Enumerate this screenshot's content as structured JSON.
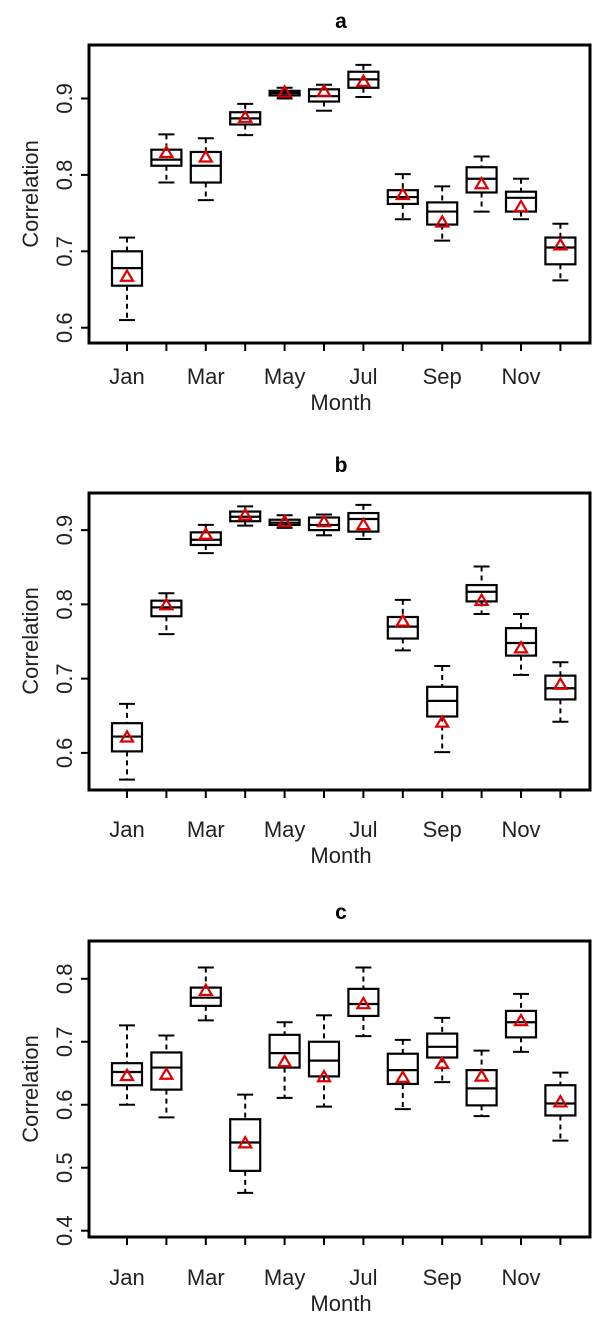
{
  "chart_data": [
    {
      "type": "boxplot",
      "title": "a",
      "xlabel": "Month",
      "ylabel": "Correlation",
      "ylim": [
        0.58,
        0.97
      ],
      "yticks": [
        0.6,
        0.7,
        0.8,
        0.9
      ],
      "ytick_labels": [
        "0.6",
        "0.7",
        "0.8",
        "0.9"
      ],
      "months": [
        "Jan",
        "Feb",
        "Mar",
        "Apr",
        "May",
        "Jun",
        "Jul",
        "Aug",
        "Sep",
        "Oct",
        "Nov",
        "Dec"
      ],
      "xtick_labels": [
        "Jan",
        "Mar",
        "May",
        "Jul",
        "Sep",
        "Nov"
      ],
      "boxes": [
        {
          "min": 0.61,
          "q1": 0.655,
          "median": 0.678,
          "q3": 0.7,
          "max": 0.718,
          "mean": 0.667
        },
        {
          "min": 0.79,
          "q1": 0.812,
          "median": 0.82,
          "q3": 0.833,
          "max": 0.853,
          "mean": 0.829
        },
        {
          "min": 0.767,
          "q1": 0.79,
          "median": 0.812,
          "q3": 0.83,
          "max": 0.848,
          "mean": 0.823
        },
        {
          "min": 0.852,
          "q1": 0.866,
          "median": 0.874,
          "q3": 0.882,
          "max": 0.893,
          "mean": 0.875
        },
        {
          "min": 0.9,
          "q1": 0.904,
          "median": 0.907,
          "q3": 0.91,
          "max": 0.914,
          "mean": 0.908
        },
        {
          "min": 0.884,
          "q1": 0.896,
          "median": 0.903,
          "q3": 0.912,
          "max": 0.918,
          "mean": 0.909
        },
        {
          "min": 0.902,
          "q1": 0.914,
          "median": 0.925,
          "q3": 0.935,
          "max": 0.944,
          "mean": 0.922
        },
        {
          "min": 0.742,
          "q1": 0.762,
          "median": 0.771,
          "q3": 0.78,
          "max": 0.801,
          "mean": 0.774
        },
        {
          "min": 0.714,
          "q1": 0.735,
          "median": 0.752,
          "q3": 0.764,
          "max": 0.785,
          "mean": 0.738
        },
        {
          "min": 0.752,
          "q1": 0.777,
          "median": 0.795,
          "q3": 0.81,
          "max": 0.824,
          "mean": 0.788
        },
        {
          "min": 0.742,
          "q1": 0.752,
          "median": 0.77,
          "q3": 0.778,
          "max": 0.795,
          "mean": 0.758
        },
        {
          "min": 0.662,
          "q1": 0.683,
          "median": 0.705,
          "q3": 0.718,
          "max": 0.736,
          "mean": 0.708
        }
      ]
    },
    {
      "type": "boxplot",
      "title": "b",
      "xlabel": "Month",
      "ylabel": "Correlation",
      "ylim": [
        0.55,
        0.95
      ],
      "yticks": [
        0.6,
        0.7,
        0.8,
        0.9
      ],
      "ytick_labels": [
        "0.6",
        "0.7",
        "0.8",
        "0.9"
      ],
      "months": [
        "Jan",
        "Feb",
        "Mar",
        "Apr",
        "May",
        "Jun",
        "Jul",
        "Aug",
        "Sep",
        "Oct",
        "Nov",
        "Dec"
      ],
      "xtick_labels": [
        "Jan",
        "Mar",
        "May",
        "Jul",
        "Sep",
        "Nov"
      ],
      "boxes": [
        {
          "min": 0.564,
          "q1": 0.602,
          "median": 0.622,
          "q3": 0.64,
          "max": 0.666,
          "mean": 0.621
        },
        {
          "min": 0.76,
          "q1": 0.784,
          "median": 0.796,
          "q3": 0.805,
          "max": 0.815,
          "mean": 0.799
        },
        {
          "min": 0.869,
          "q1": 0.88,
          "median": 0.887,
          "q3": 0.897,
          "max": 0.907,
          "mean": 0.894
        },
        {
          "min": 0.906,
          "q1": 0.912,
          "median": 0.918,
          "q3": 0.925,
          "max": 0.932,
          "mean": 0.92
        },
        {
          "min": 0.903,
          "q1": 0.907,
          "median": 0.91,
          "q3": 0.914,
          "max": 0.92,
          "mean": 0.911
        },
        {
          "min": 0.893,
          "q1": 0.9,
          "median": 0.907,
          "q3": 0.917,
          "max": 0.921,
          "mean": 0.911
        },
        {
          "min": 0.888,
          "q1": 0.898,
          "median": 0.915,
          "q3": 0.923,
          "max": 0.934,
          "mean": 0.907
        },
        {
          "min": 0.738,
          "q1": 0.754,
          "median": 0.77,
          "q3": 0.783,
          "max": 0.806,
          "mean": 0.777
        },
        {
          "min": 0.601,
          "q1": 0.649,
          "median": 0.67,
          "q3": 0.689,
          "max": 0.717,
          "mean": 0.641
        },
        {
          "min": 0.787,
          "q1": 0.804,
          "median": 0.817,
          "q3": 0.826,
          "max": 0.851,
          "mean": 0.805
        },
        {
          "min": 0.705,
          "q1": 0.731,
          "median": 0.748,
          "q3": 0.768,
          "max": 0.787,
          "mean": 0.741
        },
        {
          "min": 0.642,
          "q1": 0.672,
          "median": 0.687,
          "q3": 0.704,
          "max": 0.722,
          "mean": 0.692
        }
      ]
    },
    {
      "type": "boxplot",
      "title": "c",
      "xlabel": "Month",
      "ylabel": "Correlation",
      "ylim": [
        0.39,
        0.86
      ],
      "yticks": [
        0.4,
        0.5,
        0.6,
        0.7,
        0.8
      ],
      "ytick_labels": [
        "0.4",
        "0.5",
        "0.6",
        "0.7",
        "0.8"
      ],
      "months": [
        "Jan",
        "Feb",
        "Mar",
        "Apr",
        "May",
        "Jun",
        "Jul",
        "Aug",
        "Sep",
        "Oct",
        "Nov",
        "Dec"
      ],
      "xtick_labels": [
        "Jan",
        "Mar",
        "May",
        "Jul",
        "Sep",
        "Nov"
      ],
      "boxes": [
        {
          "min": 0.6,
          "q1": 0.631,
          "median": 0.652,
          "q3": 0.666,
          "max": 0.726,
          "mean": 0.646
        },
        {
          "min": 0.58,
          "q1": 0.624,
          "median": 0.659,
          "q3": 0.683,
          "max": 0.71,
          "mean": 0.648
        },
        {
          "min": 0.734,
          "q1": 0.757,
          "median": 0.77,
          "q3": 0.786,
          "max": 0.818,
          "mean": 0.781
        },
        {
          "min": 0.46,
          "q1": 0.495,
          "median": 0.54,
          "q3": 0.577,
          "max": 0.616,
          "mean": 0.539
        },
        {
          "min": 0.611,
          "q1": 0.659,
          "median": 0.682,
          "q3": 0.711,
          "max": 0.731,
          "mean": 0.668
        },
        {
          "min": 0.597,
          "q1": 0.645,
          "median": 0.67,
          "q3": 0.7,
          "max": 0.742,
          "mean": 0.644
        },
        {
          "min": 0.709,
          "q1": 0.741,
          "median": 0.76,
          "q3": 0.784,
          "max": 0.818,
          "mean": 0.76
        },
        {
          "min": 0.593,
          "q1": 0.633,
          "median": 0.655,
          "q3": 0.681,
          "max": 0.703,
          "mean": 0.643
        },
        {
          "min": 0.636,
          "q1": 0.675,
          "median": 0.692,
          "q3": 0.713,
          "max": 0.738,
          "mean": 0.665
        },
        {
          "min": 0.582,
          "q1": 0.599,
          "median": 0.626,
          "q3": 0.655,
          "max": 0.686,
          "mean": 0.645
        },
        {
          "min": 0.684,
          "q1": 0.707,
          "median": 0.731,
          "q3": 0.749,
          "max": 0.776,
          "mean": 0.733
        },
        {
          "min": 0.543,
          "q1": 0.583,
          "median": 0.602,
          "q3": 0.631,
          "max": 0.651,
          "mean": 0.604
        }
      ]
    }
  ]
}
